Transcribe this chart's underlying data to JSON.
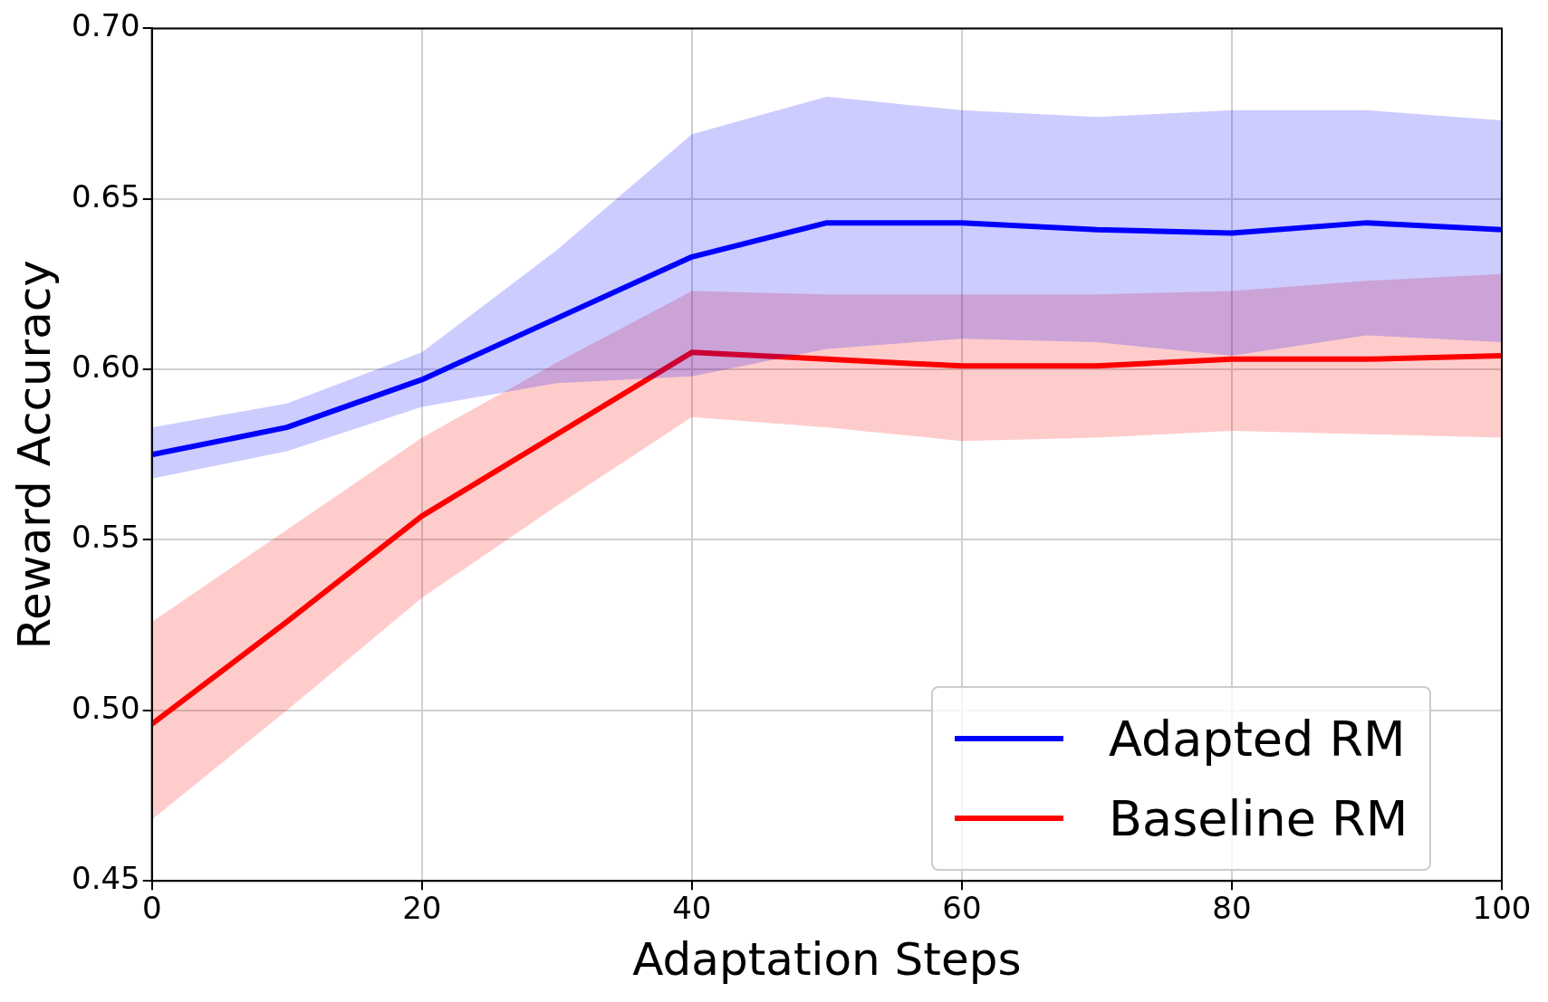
{
  "chart_data": {
    "type": "line",
    "xlabel": "Adaptation Steps",
    "ylabel": "Reward Accuracy",
    "x": [
      0,
      10,
      20,
      30,
      40,
      50,
      60,
      70,
      80,
      90,
      100
    ],
    "series": [
      {
        "name": "Adapted RM",
        "color": "#0000ff",
        "values": [
          0.575,
          0.583,
          0.597,
          0.615,
          0.633,
          0.643,
          0.643,
          0.641,
          0.64,
          0.643,
          0.641
        ],
        "lower": [
          0.568,
          0.576,
          0.589,
          0.596,
          0.598,
          0.606,
          0.609,
          0.608,
          0.604,
          0.61,
          0.608
        ],
        "upper": [
          0.583,
          0.59,
          0.605,
          0.635,
          0.669,
          0.68,
          0.676,
          0.674,
          0.676,
          0.676,
          0.673
        ]
      },
      {
        "name": "Baseline RM",
        "color": "#ff0000",
        "values": [
          0.496,
          0.526,
          0.557,
          0.581,
          0.605,
          0.603,
          0.601,
          0.601,
          0.603,
          0.603,
          0.604
        ],
        "lower": [
          0.468,
          0.5,
          0.533,
          0.56,
          0.586,
          0.583,
          0.579,
          0.58,
          0.582,
          0.581,
          0.58
        ],
        "upper": [
          0.526,
          0.553,
          0.58,
          0.602,
          0.623,
          0.622,
          0.622,
          0.622,
          0.623,
          0.626,
          0.628
        ]
      }
    ],
    "xlim": [
      0,
      100
    ],
    "xticks": [
      0,
      20,
      40,
      60,
      80,
      100
    ],
    "ylim": [
      0.45,
      0.7
    ],
    "yticks": [
      {
        "value": 0.45,
        "label": "0.45"
      },
      {
        "value": 0.5,
        "label": "0.50"
      },
      0.55,
      {
        "value": 0.6,
        "label": "0.60"
      },
      0.65,
      {
        "value": 0.7,
        "label": "0.70"
      }
    ],
    "grid": true,
    "legend": "bottom right",
    "marker": "none",
    "line_style": "solid"
  }
}
